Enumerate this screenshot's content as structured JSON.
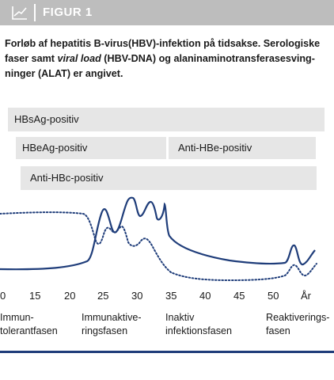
{
  "header": {
    "title": "FIGUR 1"
  },
  "caption": {
    "part1": "Forløb af hepatitis B-virus(HBV)-infektion på tidsakse. Serologiske faser samt ",
    "italic": "viral load",
    "part2": " (HBV-DNA) og alaninaminotransferasesving­ninger (ALAT) er angivet."
  },
  "serology": {
    "hbsag": "HBsAg-positiv",
    "hbeag": "HBeAg-positiv",
    "anti_hbe": "Anti-HBe-positiv",
    "anti_hbc": "Anti-HBc-positiv"
  },
  "axis": {
    "ticks": [
      "0",
      "15",
      "20",
      "25",
      "30",
      "35",
      "40",
      "45",
      "50",
      "År"
    ]
  },
  "phases": [
    {
      "line1": "Immun-",
      "line2": "tolerantfasen"
    },
    {
      "line1": "Immunaktive-",
      "line2": "ringsfasen"
    },
    {
      "line1": "Inaktiv",
      "line2": "infektionsfasen"
    },
    {
      "line1": "Reaktiverings-",
      "line2": "fasen"
    }
  ],
  "colors": {
    "header_bg": "#bdbdbd",
    "bar_bg": "#e6e6e6",
    "line": "#1f3d7a",
    "rule": "#1f3d7a"
  }
}
